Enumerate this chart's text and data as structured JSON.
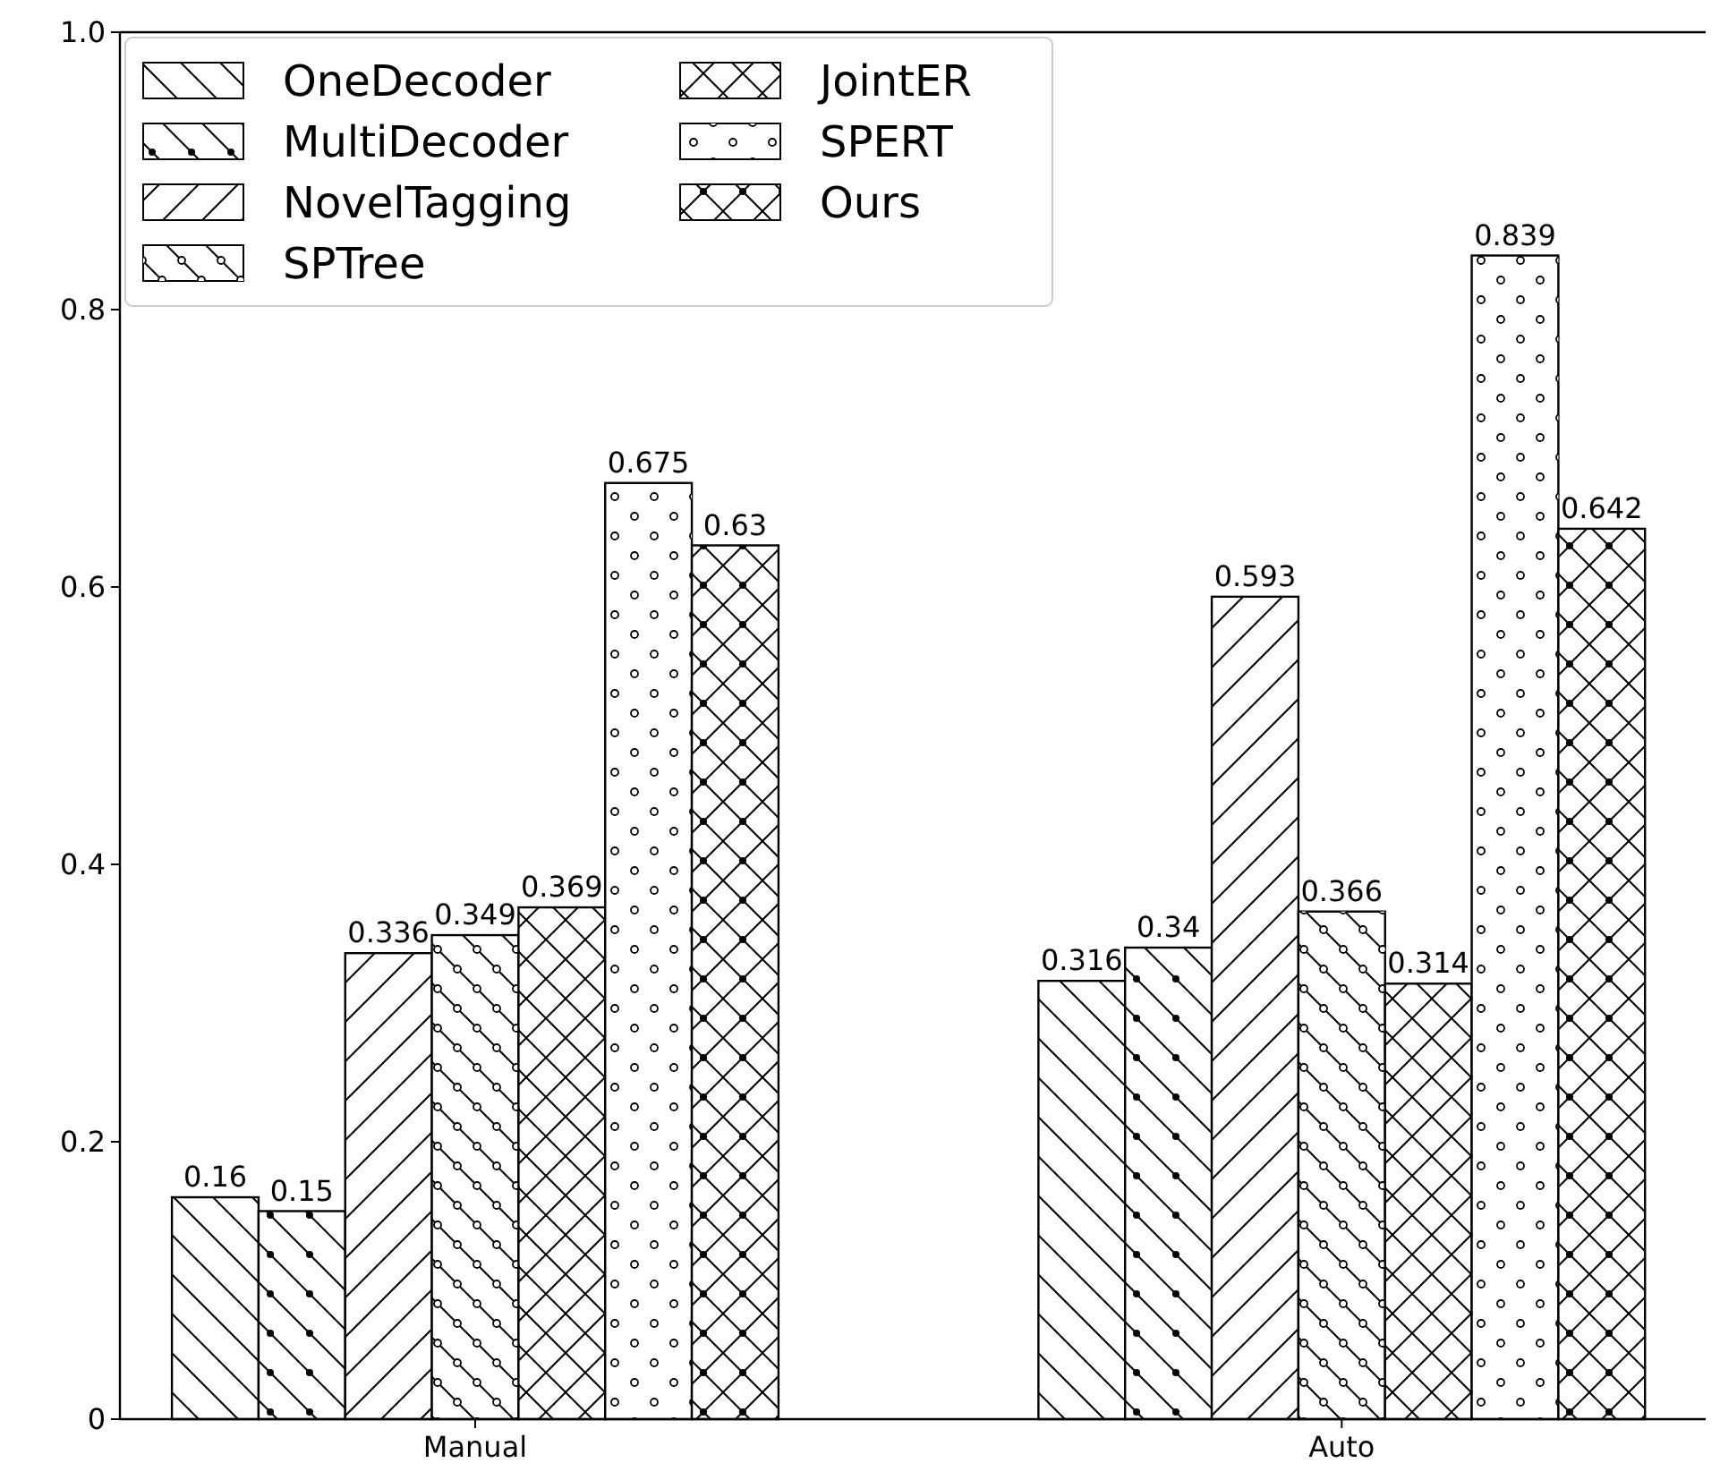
{
  "chart_data": {
    "type": "bar",
    "categories": [
      "Manual",
      "Auto"
    ],
    "series": [
      {
        "name": "OneDecoder",
        "color": "#ffffff",
        "values": [
          0.16,
          0.316
        ]
      },
      {
        "name": "MultiDecoder",
        "color": "#ffffff",
        "values": [
          0.15,
          0.34
        ]
      },
      {
        "name": "NovelTagging",
        "color": "#ffffff",
        "values": [
          0.336,
          0.593
        ]
      },
      {
        "name": "SPTree",
        "color": "#ffffff",
        "values": [
          0.349,
          0.366
        ]
      },
      {
        "name": "JointER",
        "color": "#ffffff",
        "values": [
          0.369,
          0.314
        ]
      },
      {
        "name": "SPERT",
        "color": "#ffffff",
        "values": [
          0.675,
          0.839
        ]
      },
      {
        "name": "Ours",
        "color": "#ffffff",
        "values": [
          0.63,
          0.642
        ]
      }
    ],
    "ylim": [
      0,
      1
    ],
    "yticks": [
      0,
      {
        "value": 0.2,
        "label": "0.2"
      },
      {
        "value": 0.4,
        "label": "0.4"
      },
      {
        "value": 0.6,
        "label": "0.6"
      },
      {
        "value": 0.8,
        "label": "0.8"
      },
      {
        "value": 1,
        "label": "1.0"
      }
    ],
    "data_labels": true,
    "legend": "top left",
    "grid": false
  }
}
